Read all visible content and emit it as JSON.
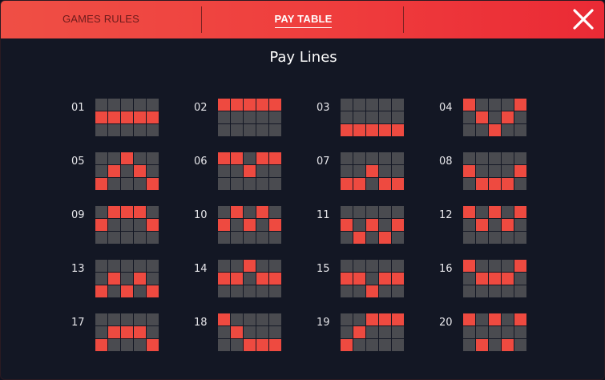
{
  "tabs": {
    "rules_label": "GAMES RULES",
    "paytable_label": "PAY TABLE"
  },
  "close_icon": "close-icon",
  "title": "Pay Lines",
  "colors": {
    "header_start": "#ef4f45",
    "header_end": "#ea2a35",
    "background": "#131724",
    "active_cell": "#ee4a40",
    "inactive_cell": "#4a4b50"
  },
  "paylines": [
    {
      "number": "01",
      "rows": [
        1,
        1,
        1,
        1,
        1
      ]
    },
    {
      "number": "02",
      "rows": [
        0,
        0,
        0,
        0,
        0
      ]
    },
    {
      "number": "03",
      "rows": [
        2,
        2,
        2,
        2,
        2
      ]
    },
    {
      "number": "04",
      "rows": [
        0,
        1,
        2,
        1,
        0
      ]
    },
    {
      "number": "05",
      "rows": [
        2,
        1,
        0,
        1,
        2
      ]
    },
    {
      "number": "06",
      "rows": [
        0,
        0,
        1,
        0,
        0
      ]
    },
    {
      "number": "07",
      "rows": [
        2,
        2,
        1,
        2,
        2
      ]
    },
    {
      "number": "08",
      "rows": [
        1,
        2,
        2,
        2,
        1
      ]
    },
    {
      "number": "09",
      "rows": [
        1,
        0,
        0,
        0,
        1
      ]
    },
    {
      "number": "10",
      "rows": [
        1,
        0,
        1,
        0,
        1
      ]
    },
    {
      "number": "11",
      "rows": [
        1,
        2,
        1,
        2,
        1
      ]
    },
    {
      "number": "12",
      "rows": [
        0,
        1,
        0,
        1,
        0
      ]
    },
    {
      "number": "13",
      "rows": [
        2,
        1,
        2,
        1,
        2
      ]
    },
    {
      "number": "14",
      "rows": [
        1,
        1,
        0,
        1,
        1
      ]
    },
    {
      "number": "15",
      "rows": [
        1,
        1,
        2,
        1,
        1
      ]
    },
    {
      "number": "16",
      "rows": [
        0,
        1,
        1,
        1,
        0
      ]
    },
    {
      "number": "17",
      "rows": [
        2,
        1,
        1,
        1,
        2
      ]
    },
    {
      "number": "18",
      "rows": [
        0,
        1,
        2,
        2,
        2
      ]
    },
    {
      "number": "19",
      "rows": [
        2,
        1,
        0,
        0,
        0
      ]
    },
    {
      "number": "20",
      "rows": [
        0,
        2,
        0,
        2,
        0
      ]
    }
  ]
}
